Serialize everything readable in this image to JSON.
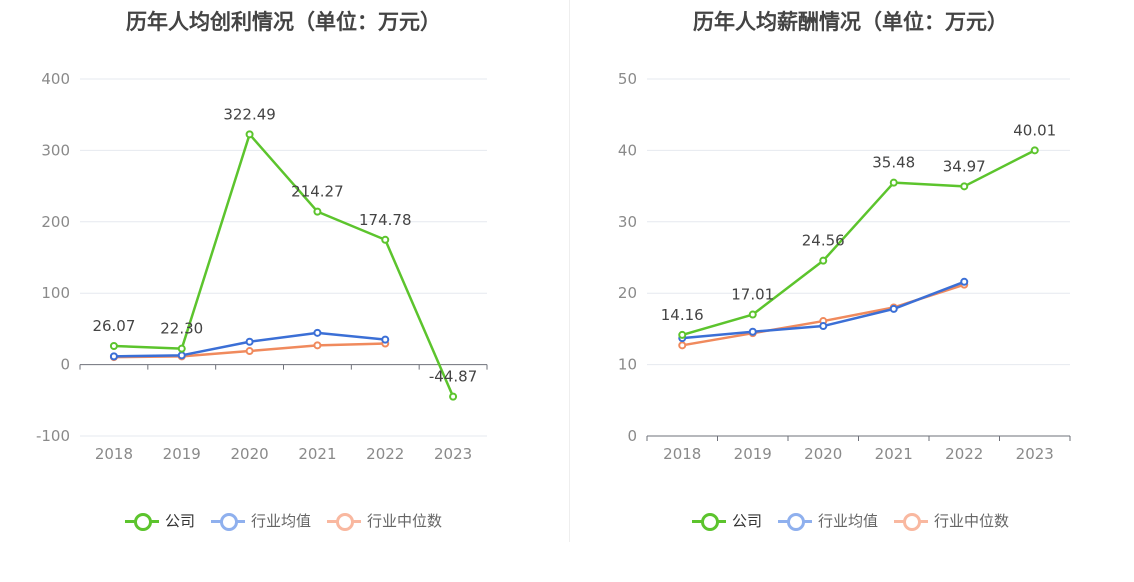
{
  "charts": [
    {
      "title": "历年人均创利情况（单位：万元）",
      "chart_data": {
        "type": "line",
        "categories": [
          "2018",
          "2019",
          "2020",
          "2021",
          "2022",
          "2023"
        ],
        "ylim": [
          -100,
          400
        ],
        "yticks": [
          -100,
          0,
          100,
          200,
          300,
          400
        ],
        "ytick_labels": [
          "-100",
          "0",
          "100",
          "200",
          "300",
          "400"
        ],
        "grid": true,
        "legend_position": "bottom-center",
        "series": [
          {
            "name": "公司",
            "color": "#5cc42d",
            "values": [
              26.07,
              22.3,
              322.49,
              214.27,
              174.78,
              -44.87
            ],
            "labels": [
              "26.07",
              "22.30",
              "322.49",
              "214.27",
              "174.78",
              "-44.87"
            ]
          },
          {
            "name": "行业均值",
            "color": "#3b6fd6",
            "legend_color": "#8fb0ee",
            "values": [
              11.5,
              13.0,
              32.0,
              44.5,
              35.0,
              null
            ]
          },
          {
            "name": "行业中位数",
            "color": "#f08a5d",
            "legend_color": "#f9b8a0",
            "values": [
              10.5,
              11.5,
              19.0,
              27.0,
              29.5,
              null
            ]
          }
        ]
      }
    },
    {
      "title": "历年人均薪酬情况（单位：万元）",
      "chart_data": {
        "type": "line",
        "categories": [
          "2018",
          "2019",
          "2020",
          "2021",
          "2022",
          "2023"
        ],
        "ylim": [
          0,
          50
        ],
        "yticks": [
          0,
          10,
          20,
          30,
          40,
          50
        ],
        "ytick_labels": [
          "0",
          "10",
          "20",
          "30",
          "40",
          "50"
        ],
        "grid": true,
        "legend_position": "bottom-center",
        "series": [
          {
            "name": "公司",
            "color": "#5cc42d",
            "values": [
              14.16,
              17.01,
              24.56,
              35.48,
              34.97,
              40.01
            ],
            "labels": [
              "14.16",
              "17.01",
              "24.56",
              "35.48",
              "34.97",
              "40.01"
            ]
          },
          {
            "name": "行业均值",
            "color": "#3b6fd6",
            "legend_color": "#8fb0ee",
            "values": [
              13.7,
              14.6,
              15.4,
              17.8,
              21.6,
              null
            ]
          },
          {
            "name": "行业中位数",
            "color": "#f08a5d",
            "legend_color": "#f9b8a0",
            "values": [
              12.7,
              14.4,
              16.1,
              18.0,
              21.2,
              null
            ]
          }
        ]
      }
    }
  ]
}
